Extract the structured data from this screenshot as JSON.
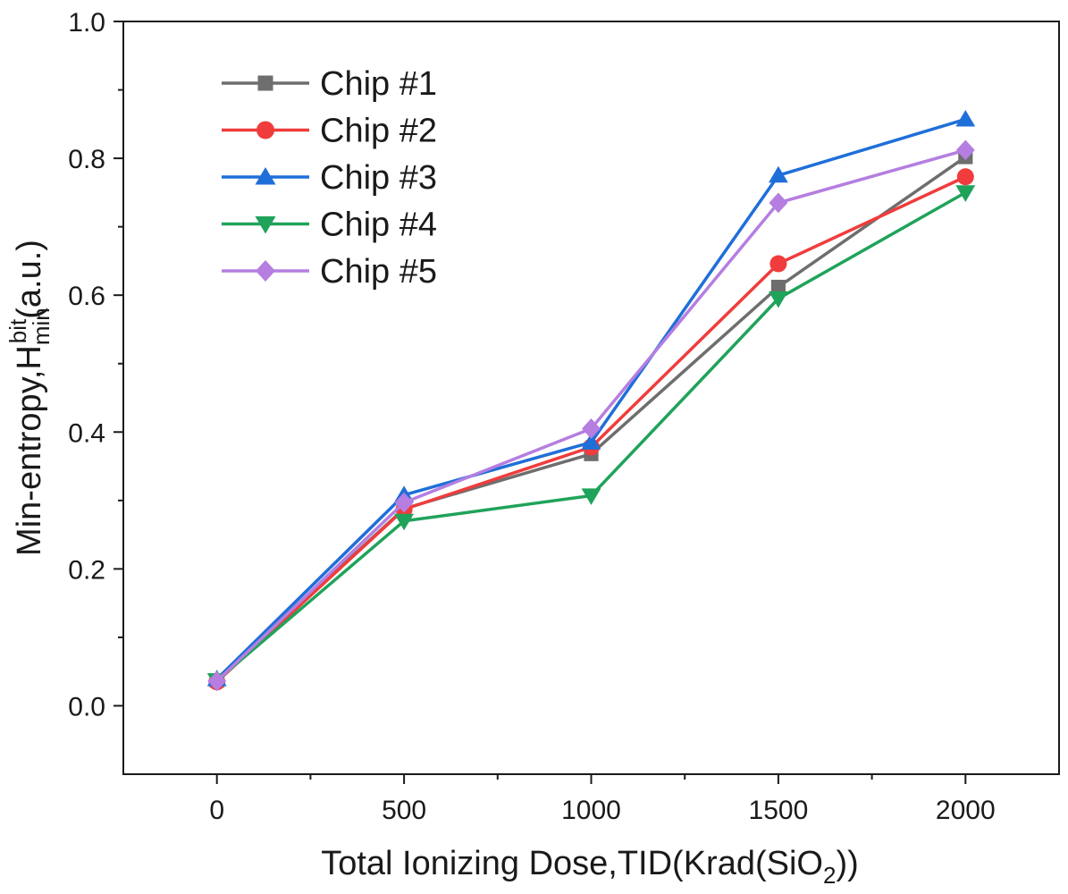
{
  "chart_data": {
    "type": "line",
    "title": "",
    "xlabel": "Total Ionizing Dose,TID(Krad(SiO",
    "xlabel_sub": "2",
    "xlabel_end": "))",
    "ylabel": "Min-entropy,H",
    "ylabel_sub": "min",
    "ylabel_sup": "bit",
    "ylabel_end": "(a.u.)",
    "xlim": [
      -250,
      2250
    ],
    "ylim": [
      -0.1,
      1.0
    ],
    "x": [
      0,
      500,
      1000,
      1500,
      2000
    ],
    "xticks": [
      0,
      500,
      1000,
      1500,
      2000
    ],
    "xtick_labels": [
      "0",
      "500",
      "1000",
      "1500",
      "2000"
    ],
    "yticks": [
      0.0,
      0.2,
      0.4,
      0.6,
      0.8,
      1.0
    ],
    "ytick_labels": [
      "0.0",
      "0.2",
      "0.4",
      "0.6",
      "0.8",
      "1.0"
    ],
    "grid": false,
    "legend_position": "top-left",
    "series": [
      {
        "name": "Chip #1",
        "color": "#6e6e6e",
        "marker": "square",
        "values": [
          0.037,
          0.288,
          0.368,
          0.612,
          0.802
        ]
      },
      {
        "name": "Chip #2",
        "color": "#f03c3c",
        "marker": "circle",
        "values": [
          0.035,
          0.287,
          0.378,
          0.646,
          0.773
        ]
      },
      {
        "name": "Chip #3",
        "color": "#1f6fd9",
        "marker": "triangle-up",
        "values": [
          0.039,
          0.308,
          0.385,
          0.775,
          0.857
        ]
      },
      {
        "name": "Chip #4",
        "color": "#1fa35a",
        "marker": "triangle-down",
        "values": [
          0.037,
          0.27,
          0.307,
          0.595,
          0.75
        ]
      },
      {
        "name": "Chip #5",
        "color": "#b57ee0",
        "marker": "diamond",
        "values": [
          0.036,
          0.297,
          0.405,
          0.735,
          0.812
        ]
      }
    ]
  }
}
